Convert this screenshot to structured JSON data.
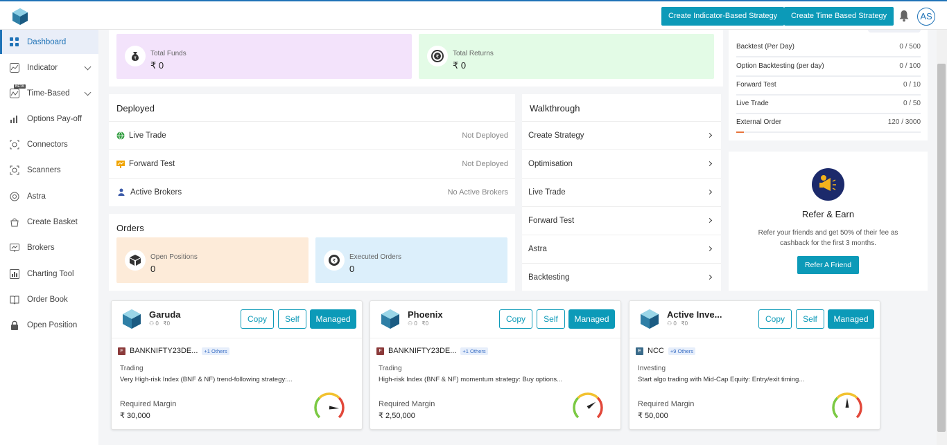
{
  "header": {
    "btn_indicator": "Create Indicator-Based Strategy",
    "btn_time": "Create Time Based Strategy",
    "avatar": "AS"
  },
  "sidebar": {
    "items": [
      {
        "label": "Dashboard",
        "icon": "dashboard-icon"
      },
      {
        "label": "Indicator",
        "icon": "indicator-icon"
      },
      {
        "label": "Time-Based",
        "icon": "time-based-icon",
        "badge": "BETA"
      },
      {
        "label": "Options Pay-off",
        "icon": "bar-chart-icon"
      },
      {
        "label": "Connectors",
        "icon": "connectors-icon"
      },
      {
        "label": "Scanners",
        "icon": "scanner-icon"
      },
      {
        "label": "Astra",
        "icon": "astra-icon"
      },
      {
        "label": "Create Basket",
        "icon": "basket-icon"
      },
      {
        "label": "Brokers",
        "icon": "brokers-icon"
      },
      {
        "label": "Charting Tool",
        "icon": "chart-icon"
      },
      {
        "label": "Order Book",
        "icon": "book-icon"
      },
      {
        "label": "Open Position",
        "icon": "lock-icon"
      }
    ]
  },
  "funds": {
    "total_funds_label": "Total Funds",
    "total_funds_value": "₹ 0",
    "total_returns_label": "Total Returns",
    "total_returns_value": "₹ 0"
  },
  "deployed": {
    "title": "Deployed",
    "rows": [
      {
        "label": "Live Trade",
        "value": "Not Deployed"
      },
      {
        "label": "Forward Test",
        "value": "Not Deployed"
      },
      {
        "label": "Active Brokers",
        "value": "No Active Brokers"
      }
    ]
  },
  "orders": {
    "title": "Orders",
    "open_label": "Open Positions",
    "open_value": "0",
    "exec_label": "Executed Orders",
    "exec_value": "0"
  },
  "walkthrough": {
    "title": "Walkthrough",
    "items": [
      "Create Strategy",
      "Optimisation",
      "Live Trade",
      "Forward Test",
      "Astra",
      "Backtesting"
    ]
  },
  "limits": [
    {
      "label": "Backtest (Per Day)",
      "value": "0 / 500",
      "fraction": 0
    },
    {
      "label": "Option Backtesting (per day)",
      "value": "0 / 100",
      "fraction": 0
    },
    {
      "label": "Forward Test",
      "value": "0 / 10",
      "fraction": 0
    },
    {
      "label": "Live Trade",
      "value": "0 / 50",
      "fraction": 0
    },
    {
      "label": "External Order",
      "value": "120 / 3000",
      "fraction": 0.04
    }
  ],
  "refer": {
    "title": "Refer & Earn",
    "line1": "Refer your friends and get 50% of their fee as",
    "line2": "cashback for the first 3 months.",
    "button": "Refer A Friend"
  },
  "strategy_buttons": {
    "copy": "Copy",
    "self": "Self",
    "managed": "Managed"
  },
  "strategies": [
    {
      "name": "Garuda",
      "meta_a": "0",
      "meta_b": "₹0",
      "sym_letter": "F",
      "symbol": "BANKNIFTY23DE...",
      "others": "+1 Others",
      "category": "Trading",
      "desc": "Very High-risk Index (BNF & NF) trend-following strategy:...",
      "margin_label": "Required Margin",
      "margin": "₹ 30,000",
      "sym_color": "#8b3a3a",
      "risk": 0.85
    },
    {
      "name": "Phoenix",
      "meta_a": "0",
      "meta_b": "₹0",
      "sym_letter": "F",
      "symbol": "BANKNIFTY23DE...",
      "others": "+1 Others",
      "category": "Trading",
      "desc": "High-risk Index (BNF & NF) momentum strategy: Buy options...",
      "margin_label": "Required Margin",
      "margin": "₹ 2,50,000",
      "sym_color": "#8b3a3a",
      "risk": 0.7
    },
    {
      "name": "Active Inve...",
      "meta_a": "0",
      "meta_b": "₹0",
      "sym_letter": "E",
      "symbol": "NCC",
      "others": "+9 Others",
      "category": "Investing",
      "desc": "Start algo trading with Mid-Cap Equity: Entry/exit timing...",
      "margin_label": "Required Margin",
      "margin": "₹ 50,000",
      "sym_color": "#3a6b8a",
      "risk": 0.5
    }
  ]
}
